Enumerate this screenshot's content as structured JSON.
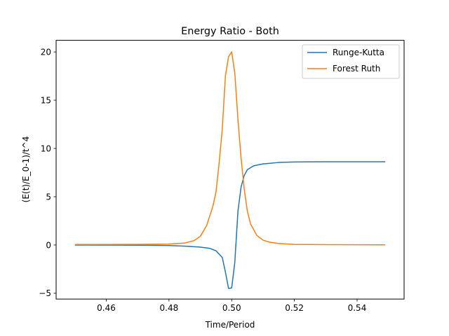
{
  "chart_data": {
    "type": "line",
    "title": "Energy Ratio - Both",
    "xlabel": "Time/Period",
    "ylabel": "(E(t)/E_0-1)/t^4",
    "xlim": [
      0.444,
      0.555
    ],
    "ylim": [
      -5.6,
      21.2
    ],
    "xticks": [
      0.46,
      0.48,
      0.5,
      0.52,
      0.54
    ],
    "xtick_labels": [
      "0.46",
      "0.48",
      "0.50",
      "0.52",
      "0.54"
    ],
    "yticks": [
      -5,
      0,
      5,
      10,
      15,
      20
    ],
    "ytick_labels": [
      "−5",
      "0",
      "5",
      "10",
      "15",
      "20"
    ],
    "grid": false,
    "legend_position": "top-right",
    "series": [
      {
        "name": "Runge-Kutta",
        "color": "#1f77b4",
        "x": [
          0.45,
          0.47,
          0.48,
          0.485,
          0.49,
          0.493,
          0.495,
          0.497,
          0.498,
          0.499,
          0.5,
          0.501,
          0.502,
          0.503,
          0.504,
          0.505,
          0.507,
          0.51,
          0.515,
          0.52,
          0.53,
          0.549
        ],
        "y": [
          0.0,
          -0.02,
          -0.06,
          -0.12,
          -0.22,
          -0.35,
          -0.6,
          -1.3,
          -2.8,
          -4.5,
          -4.45,
          -1.8,
          3.5,
          6.0,
          7.2,
          7.8,
          8.2,
          8.4,
          8.55,
          8.6,
          8.62,
          8.62
        ]
      },
      {
        "name": "Forest Ruth",
        "color": "#ff7f0e",
        "x": [
          0.45,
          0.47,
          0.48,
          0.485,
          0.488,
          0.49,
          0.492,
          0.494,
          0.495,
          0.496,
          0.497,
          0.498,
          0.499,
          0.5,
          0.501,
          0.502,
          0.503,
          0.504,
          0.505,
          0.506,
          0.508,
          0.51,
          0.512,
          0.515,
          0.52,
          0.53,
          0.549
        ],
        "y": [
          0.05,
          0.06,
          0.1,
          0.2,
          0.45,
          0.9,
          2.0,
          4.0,
          5.5,
          8.5,
          12.0,
          17.5,
          19.5,
          20.0,
          17.8,
          13.0,
          9.0,
          5.8,
          3.5,
          2.2,
          1.0,
          0.5,
          0.3,
          0.15,
          0.06,
          0.03,
          0.02
        ]
      }
    ]
  }
}
